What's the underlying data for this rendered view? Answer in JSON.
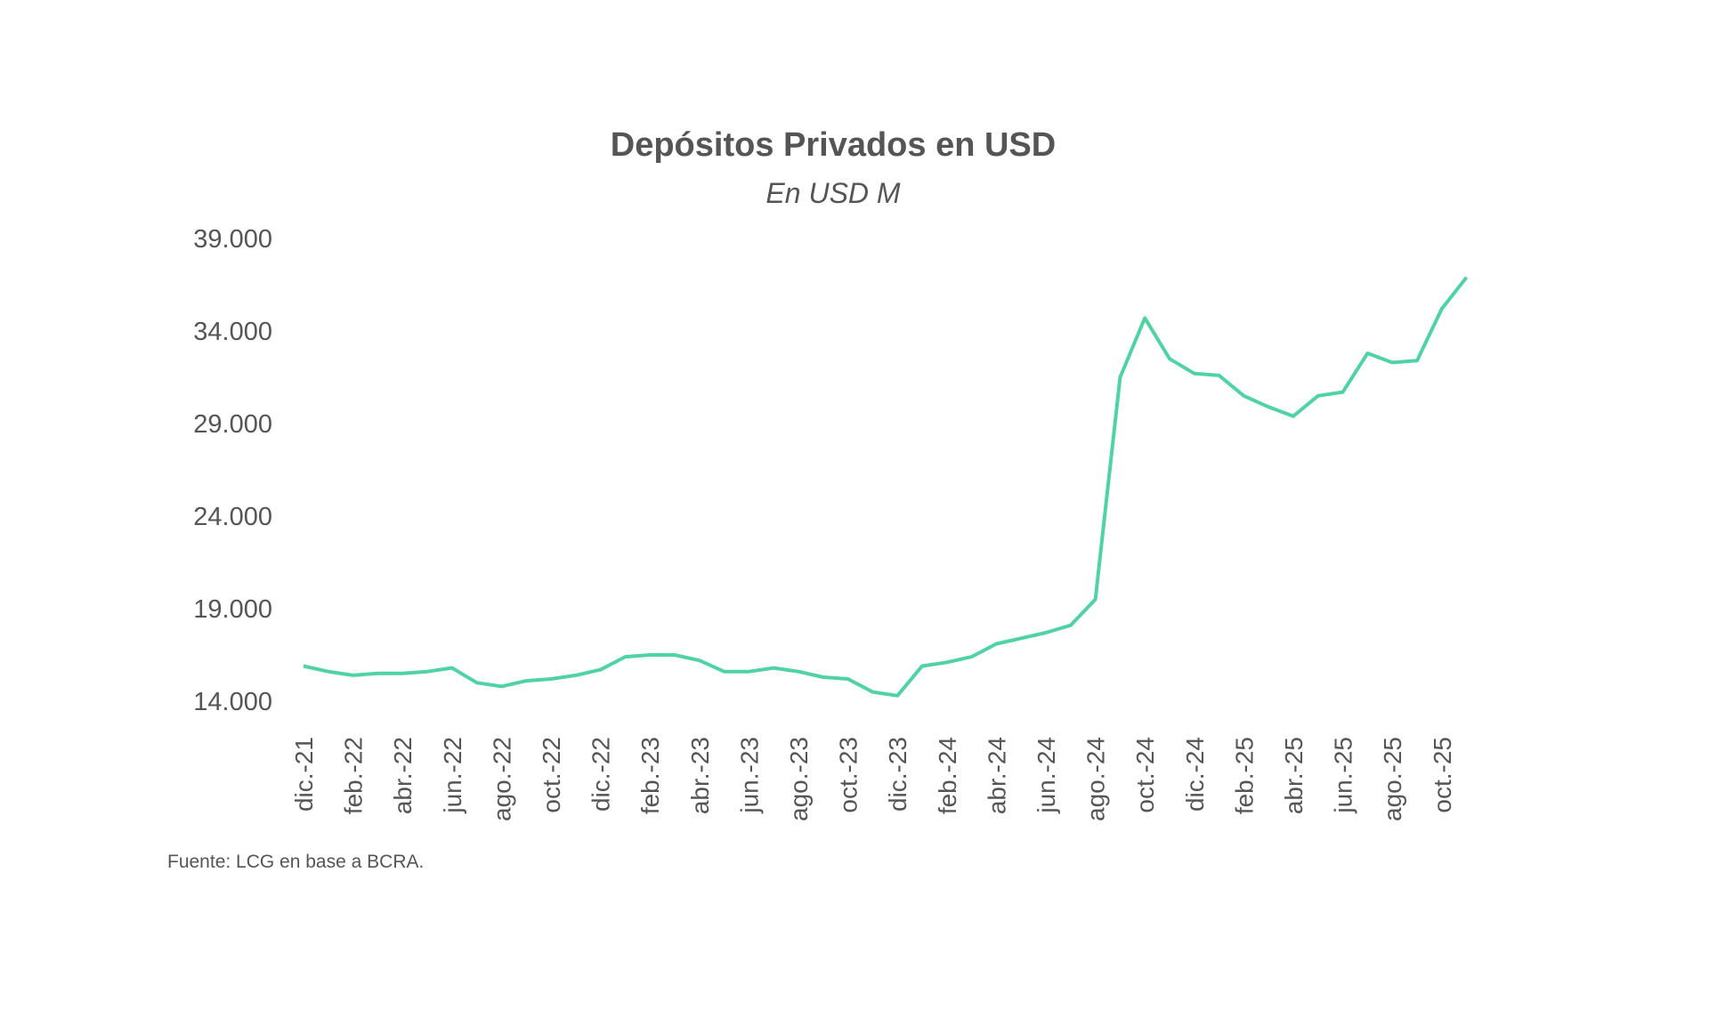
{
  "chart_data": {
    "type": "line",
    "title": "Depósitos Privados en USD",
    "subtitle": "En USD M",
    "source": "Fuente: LCG en base a BCRA.",
    "categories": [
      "dic.-21",
      null,
      "feb.-22",
      null,
      "abr.-22",
      null,
      "jun.-22",
      null,
      "ago.-22",
      null,
      "oct.-22",
      null,
      "dic.-22",
      null,
      "feb.-23",
      null,
      "abr.-23",
      null,
      "jun.-23",
      null,
      "ago.-23",
      null,
      "oct.-23",
      null,
      "dic.-23",
      null,
      "feb.-24",
      null,
      "abr.-24",
      null,
      "jun.-24",
      null,
      "ago.-24",
      null,
      "oct.-24",
      null,
      "dic.-24",
      null,
      "feb.-25",
      null,
      "abr.-25",
      null,
      "jun.-25",
      null,
      "ago.-25",
      null,
      "oct.-25",
      null
    ],
    "series": [
      {
        "name": "Depósitos Privados en USD",
        "color": "#4fd3a4",
        "values": [
          15900,
          15600,
          15400,
          15500,
          15500,
          15600,
          15800,
          15000,
          14800,
          15100,
          15200,
          15400,
          15700,
          16400,
          16500,
          16500,
          16200,
          15600,
          15600,
          15800,
          15600,
          15300,
          15200,
          14500,
          14300,
          15900,
          16100,
          16400,
          17100,
          17400,
          17700,
          18100,
          19500,
          31500,
          34700,
          32500,
          31700,
          31600,
          30500,
          29900,
          29400,
          30500,
          30700,
          32800,
          32300,
          32400,
          35200,
          36900
        ]
      }
    ],
    "ylim": [
      14000,
      39000
    ],
    "yticks": [
      {
        "value": 14000,
        "label": "14.000"
      },
      {
        "value": 19000,
        "label": "19.000"
      },
      {
        "value": 24000,
        "label": "24.000"
      },
      {
        "value": 29000,
        "label": "29.000"
      },
      {
        "value": 34000,
        "label": "34.000"
      },
      {
        "value": 39000,
        "label": "39.000"
      }
    ]
  }
}
